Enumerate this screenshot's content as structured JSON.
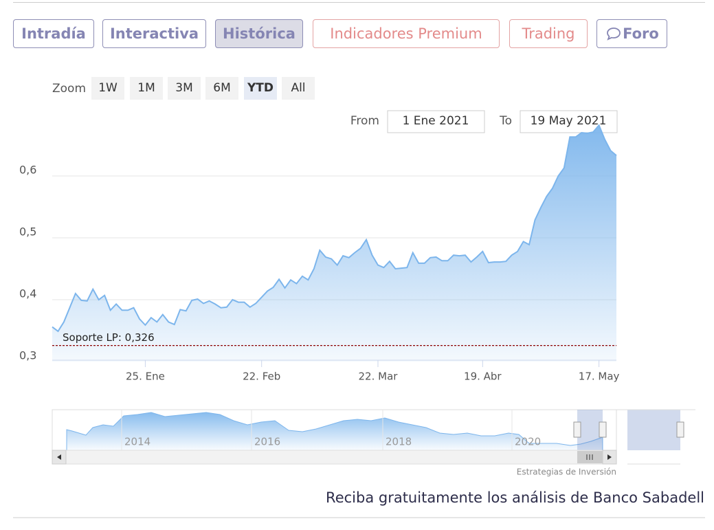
{
  "tabs": [
    "Intradía",
    "Interactiva",
    "Histórica",
    "Indicadores Premium",
    "Trading",
    "Foro"
  ],
  "zoom": {
    "label": "Zoom",
    "buttons": [
      "1W",
      "1M",
      "3M",
      "6M",
      "YTD",
      "All"
    ]
  },
  "range": {
    "from_label": "From",
    "from": "1 Ene 2021",
    "to_label": "To",
    "to": "19 May 2021"
  },
  "chart_data": {
    "type": "area",
    "categories": [
      null,
      null,
      null,
      null,
      null,
      null,
      null,
      null,
      null,
      null,
      null,
      null,
      null,
      null,
      null,
      null,
      "25. Ene",
      null,
      null,
      null,
      null,
      null,
      null,
      null,
      null,
      null,
      null,
      null,
      null,
      null,
      null,
      null,
      null,
      null,
      null,
      null,
      "22. Feb",
      null,
      null,
      null,
      null,
      null,
      null,
      null,
      null,
      null,
      null,
      null,
      null,
      null,
      null,
      null,
      null,
      null,
      null,
      null,
      "22. Mar",
      null,
      null,
      null,
      null,
      null,
      null,
      null,
      null,
      null,
      null,
      null,
      null,
      null,
      null,
      null,
      null,
      null,
      "19. Abr",
      null,
      null,
      null,
      null,
      null,
      null,
      null,
      null,
      null,
      null,
      null,
      null,
      null,
      null,
      null,
      null,
      null,
      null,
      null,
      "17. May",
      null,
      null,
      null
    ],
    "values": [
      0.356,
      0.349,
      0.364,
      0.387,
      0.41,
      0.399,
      0.398,
      0.417,
      0.4,
      0.407,
      0.383,
      0.393,
      0.383,
      0.383,
      0.387,
      0.369,
      0.359,
      0.371,
      0.364,
      0.376,
      0.364,
      0.36,
      0.384,
      0.382,
      0.399,
      0.401,
      0.394,
      0.398,
      0.393,
      0.387,
      0.388,
      0.4,
      0.396,
      0.396,
      0.388,
      0.394,
      0.404,
      0.414,
      0.42,
      0.433,
      0.419,
      0.432,
      0.426,
      0.438,
      0.432,
      0.45,
      0.48,
      0.469,
      0.466,
      0.456,
      0.471,
      0.468,
      0.476,
      0.483,
      0.497,
      0.472,
      0.456,
      0.452,
      0.462,
      0.45,
      0.451,
      0.452,
      0.476,
      0.459,
      0.459,
      0.468,
      0.469,
      0.463,
      0.463,
      0.472,
      0.471,
      0.472,
      0.461,
      0.469,
      0.478,
      0.46,
      0.461,
      0.461,
      0.462,
      0.472,
      0.478,
      0.494,
      0.489,
      0.529,
      0.549,
      0.567,
      0.58,
      0.6,
      0.613,
      0.663,
      0.663,
      0.67,
      0.669,
      0.671,
      0.682,
      0.659,
      0.641,
      0.633
    ],
    "color": "#7cb5ec",
    "ylim": [
      0.3,
      0.7
    ],
    "yticks": [
      {
        "value": 0.3,
        "label": "0,3"
      },
      {
        "value": 0.4,
        "label": "0,4"
      },
      {
        "value": 0.5,
        "label": "0,5"
      },
      {
        "value": 0.6,
        "label": "0,6"
      }
    ],
    "grid": true,
    "support": {
      "label": "Soporte LP: 0,326",
      "value": 0.326,
      "color": "#8b0000"
    },
    "navigator_labels": [
      "2014",
      "2016",
      "2018",
      "2020"
    ],
    "credit": "Estrategias de Inversión"
  },
  "footer": "Reciba gratuitamente los análisis de Banco Sabadell"
}
